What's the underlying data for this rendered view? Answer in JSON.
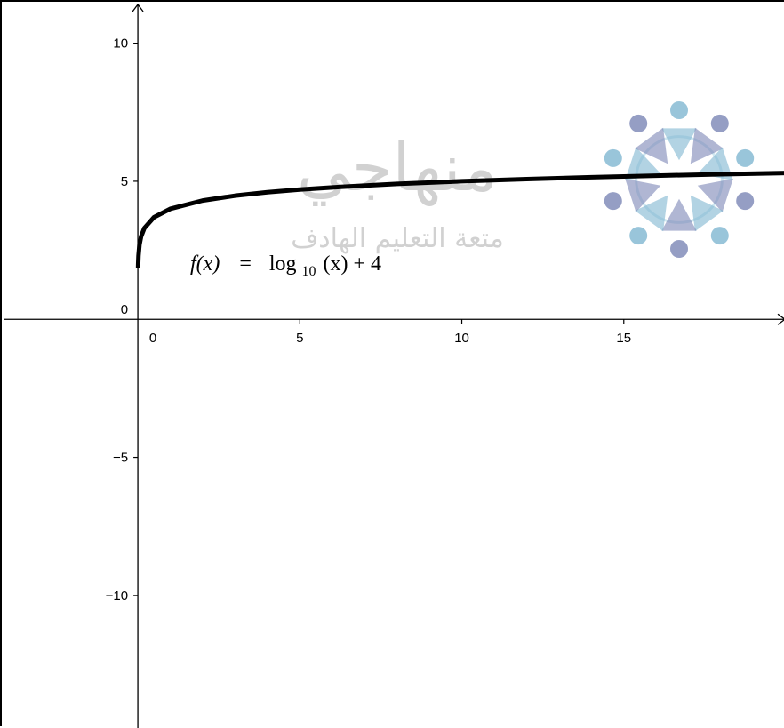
{
  "chart_data": {
    "type": "line",
    "function_label": {
      "name": "f(x)",
      "equals": "=",
      "base": "log",
      "subscript": "10",
      "argument": "(x) + 4"
    },
    "series": [
      {
        "expression": "log10(x) + 4",
        "x": [
          0.0075,
          0.01,
          0.02,
          0.05,
          0.1,
          0.2,
          0.5,
          1,
          2,
          3,
          4,
          5,
          6,
          8,
          10,
          12,
          14,
          16,
          18,
          20
        ],
        "y": [
          1.875,
          2,
          2.301,
          2.699,
          3,
          3.301,
          3.699,
          4,
          4.301,
          4.477,
          4.602,
          4.699,
          4.778,
          4.903,
          5,
          5.079,
          5.146,
          5.204,
          5.255,
          5.301
        ],
        "color": "#000000"
      }
    ],
    "xlim": [
      -4.2,
      20
    ],
    "ylim": [
      -14.8,
      11.5
    ],
    "x_ticks": [
      0,
      5,
      10,
      15
    ],
    "x_tick_labels": [
      "0",
      "5",
      "10",
      "15"
    ],
    "y_ticks": [
      10,
      5,
      0,
      -5,
      -10
    ],
    "y_tick_labels": [
      "10",
      "5",
      "0",
      "−5",
      "−10"
    ],
    "grid": false
  },
  "watermark": {
    "main_text": "منهاجي",
    "sub_text": "متعة التعليم الهادف",
    "text_color": "#9a9a9a",
    "logo_colors": [
      "#7fb6d1",
      "#7b86b5",
      "#a9d3e4"
    ]
  }
}
